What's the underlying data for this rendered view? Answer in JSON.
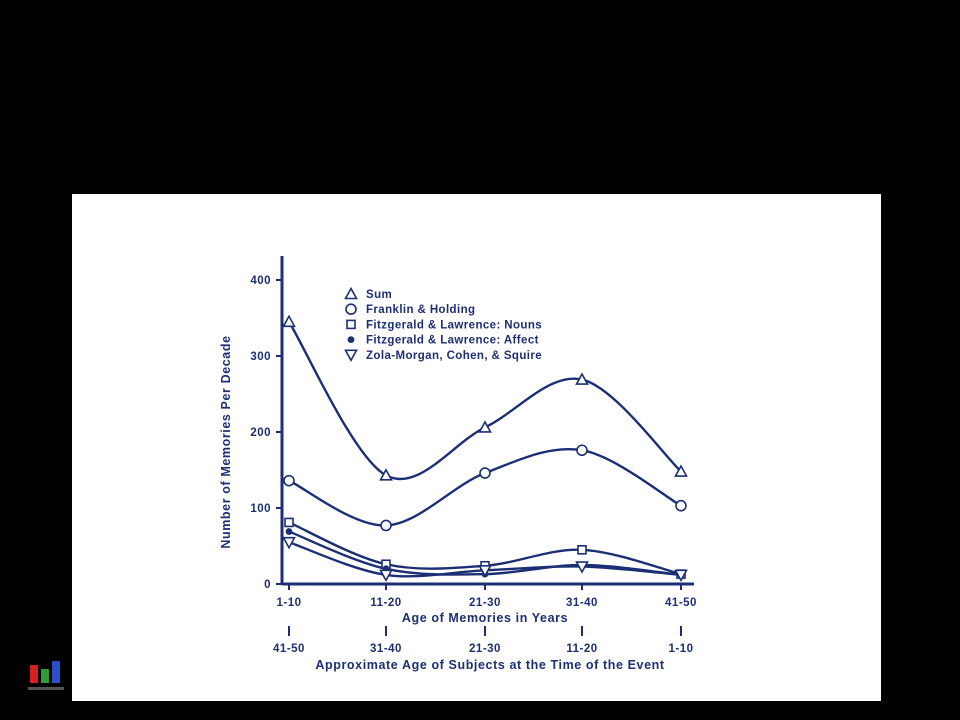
{
  "chart_data": {
    "type": "line",
    "title": "",
    "xlabel": "Age of Memories in Years",
    "xlabel_secondary": "Approximate Age of Subjects at the Time of the Event",
    "ylabel": "Number of Memories Per Decade",
    "categories": [
      "1-10",
      "11-20",
      "21-30",
      "31-40",
      "41-50"
    ],
    "categories_secondary": [
      "41-50",
      "31-40",
      "21-30",
      "11-20",
      "1-10"
    ],
    "yticks": [
      0,
      100,
      200,
      300,
      400
    ],
    "ylim": [
      0,
      400
    ],
    "grid": false,
    "legend_position": "top-center",
    "series": [
      {
        "name": "Sum",
        "marker": "triangle-up",
        "values": [
          345,
          143,
          206,
          269,
          148
        ]
      },
      {
        "name": "Franklin & Holding",
        "marker": "circle-open",
        "values": [
          136,
          77,
          146,
          176,
          103
        ]
      },
      {
        "name": "Fitzgerald & Lawrence: Nouns",
        "marker": "square-open",
        "values": [
          81,
          26,
          24,
          45,
          13
        ]
      },
      {
        "name": "Fitzgerald & Lawrence: Affect",
        "marker": "circle-filled",
        "values": [
          69,
          20,
          13,
          25,
          12
        ]
      },
      {
        "name": "Zola-Morgan, Cohen, & Squire",
        "marker": "triangle-down",
        "values": [
          55,
          12,
          18,
          23,
          12
        ]
      }
    ]
  },
  "colors": {
    "ink": "#1c2f74",
    "panel": "#ffffff",
    "background": "#000000",
    "logo": [
      "#d42020",
      "#2f9e3a",
      "#2a4fc9"
    ]
  },
  "logo": {
    "icon": "lab-logo-icon"
  }
}
